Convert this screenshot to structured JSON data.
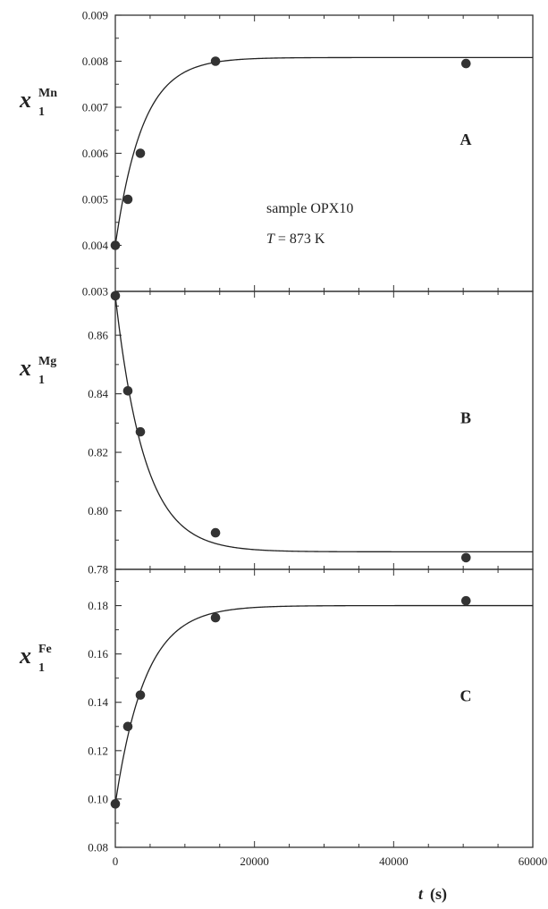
{
  "chart_data": [
    {
      "type": "scatter",
      "panel_label": "A",
      "ylabel": {
        "base": "x",
        "sub": "1",
        "sup": "Mn"
      },
      "annotation": [
        "sample OPX10",
        "T = 873 K"
      ],
      "annotation_parts": {
        "line1": "sample OPX10",
        "t_italic": "T",
        "t_rest": " = 873 K"
      },
      "xlim": [
        0,
        60000
      ],
      "ylim": [
        0.003,
        0.009
      ],
      "yticks": [
        0.003,
        0.004,
        0.005,
        0.006,
        0.007,
        0.008,
        0.009
      ],
      "ytick_labels": [
        "0.003",
        "0.004",
        "0.005",
        "0.006",
        "0.007",
        "0.008",
        "0.009"
      ],
      "points": [
        {
          "x": 0,
          "y": 0.004
        },
        {
          "x": 1800,
          "y": 0.005
        },
        {
          "x": 3600,
          "y": 0.006
        },
        {
          "x": 14400,
          "y": 0.008
        },
        {
          "x": 50400,
          "y": 0.00795
        }
      ],
      "fit": {
        "type": "exponential",
        "y0": 0.004,
        "yinf": 0.00808,
        "tau": 3900
      }
    },
    {
      "type": "scatter",
      "panel_label": "B",
      "ylabel": {
        "base": "x",
        "sub": "1",
        "sup": "Mg"
      },
      "xlim": [
        0,
        60000
      ],
      "ylim": [
        0.78,
        0.875
      ],
      "yticks": [
        0.78,
        0.8,
        0.82,
        0.84,
        0.86
      ],
      "ytick_labels": [
        "0.78",
        "0.80",
        "0.82",
        "0.84",
        "0.86"
      ],
      "points": [
        {
          "x": 0,
          "y": 0.8735
        },
        {
          "x": 1800,
          "y": 0.841
        },
        {
          "x": 3600,
          "y": 0.827
        },
        {
          "x": 14400,
          "y": 0.7925
        },
        {
          "x": 50400,
          "y": 0.784
        }
      ],
      "fit": {
        "type": "exponential",
        "y0": 0.8735,
        "yinf": 0.786,
        "tau": 4200
      }
    },
    {
      "type": "scatter",
      "panel_label": "C",
      "ylabel": {
        "base": "x",
        "sub": "1",
        "sup": "Fe"
      },
      "xlim": [
        0,
        60000
      ],
      "ylim": [
        0.08,
        0.195
      ],
      "yticks": [
        0.08,
        0.1,
        0.12,
        0.14,
        0.16,
        0.18
      ],
      "ytick_labels": [
        "0.08",
        "0.10",
        "0.12",
        "0.14",
        "0.16",
        "0.18"
      ],
      "xticks": [
        0,
        20000,
        40000,
        60000
      ],
      "xtick_labels": [
        "0",
        "20000",
        "40000",
        "60000"
      ],
      "xlabel": {
        "var": "t",
        "unit": "(s)"
      },
      "points": [
        {
          "x": 0,
          "y": 0.098
        },
        {
          "x": 1800,
          "y": 0.13
        },
        {
          "x": 3600,
          "y": 0.143
        },
        {
          "x": 14400,
          "y": 0.175
        },
        {
          "x": 50400,
          "y": 0.182
        }
      ],
      "fit": {
        "type": "exponential",
        "y0": 0.098,
        "yinf": 0.18,
        "tau": 4300
      }
    }
  ],
  "colors": {
    "ink": "#222222",
    "axis": "#333333",
    "marker": "#333333"
  }
}
